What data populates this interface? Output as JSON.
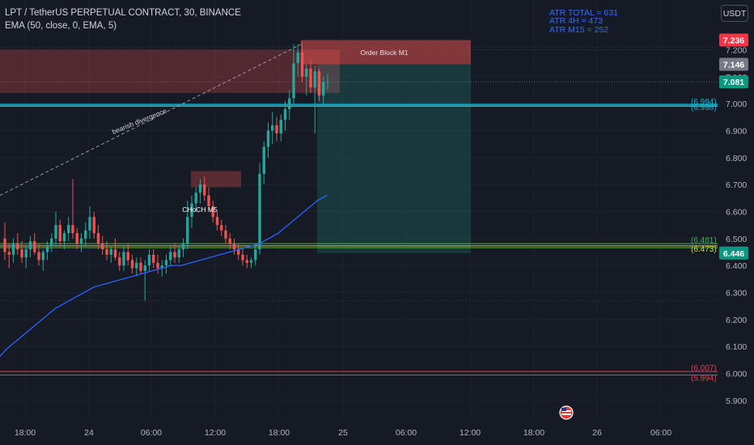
{
  "header": {
    "title": "LPT / TetherUS PERPETUAL CONTRACT, 30, BINANCE",
    "indicator": "EMA (50, close, 0, EMA, 5)"
  },
  "atr": [
    "ATR TOTAL = 631",
    "ATR 4H = 473",
    "ATR M15 = 252"
  ],
  "currency_button": "USDT",
  "colors": {
    "background": "#161a25",
    "up": "#26a69a",
    "down": "#ef5350",
    "ema": "#2962ff",
    "grid_dots": "#3a3e4a"
  },
  "chart_data": {
    "type": "candlestick",
    "title": "LPT / TetherUS PERPETUAL CONTRACT, 30, BINANCE",
    "ylim": [
      5.86,
      7.3
    ],
    "y_ticks": [
      "7.200",
      "7.100",
      "7.000",
      "6.900",
      "6.800",
      "6.700",
      "6.600",
      "6.500",
      "6.400",
      "6.300",
      "6.200",
      "6.100",
      "6.000",
      "5.900"
    ],
    "x_ticks": [
      "18:00",
      "24",
      "06:00",
      "12:00",
      "18:00",
      "25",
      "06:00",
      "12:00",
      "18:00",
      "26",
      "06:00"
    ],
    "price_badges": [
      {
        "label": "7.236",
        "value": 7.236,
        "color": "#f23645"
      },
      {
        "label": "7.146",
        "value": 7.146,
        "color": "#787b86"
      },
      {
        "label": "7.081",
        "value": 7.081,
        "color": "#089981"
      },
      {
        "label": "6.446",
        "value": 6.446,
        "color": "#089981"
      }
    ],
    "level_labels": [
      {
        "label": "(6.994)",
        "value": 6.994,
        "color": "#00bcd4"
      },
      {
        "label": "(6.998)",
        "value": 6.998,
        "color": "#00bcd4"
      },
      {
        "label": "(6.481)",
        "value": 6.481,
        "color": "#4caf50"
      },
      {
        "label": "(6.473)",
        "value": 6.473,
        "color": "#cddc39"
      },
      {
        "label": "(6.007)",
        "value": 6.007,
        "color": "#f23645"
      },
      {
        "label": "(5.994)",
        "value": 5.994,
        "color": "#f23645"
      }
    ],
    "annotations": [
      "bearish divergence",
      "Order Block M1",
      "CHoCH M5"
    ],
    "candles": [
      [
        6.5,
        6.56,
        6.42,
        6.45
      ],
      [
        6.45,
        6.48,
        6.39,
        6.44
      ],
      [
        6.44,
        6.5,
        6.41,
        6.48
      ],
      [
        6.48,
        6.52,
        6.44,
        6.46
      ],
      [
        6.46,
        6.49,
        6.41,
        6.43
      ],
      [
        6.43,
        6.47,
        6.39,
        6.46
      ],
      [
        6.46,
        6.51,
        6.43,
        6.49
      ],
      [
        6.49,
        6.52,
        6.44,
        6.45
      ],
      [
        6.45,
        6.48,
        6.4,
        6.42
      ],
      [
        6.42,
        6.46,
        6.38,
        6.45
      ],
      [
        6.45,
        6.49,
        6.42,
        6.47
      ],
      [
        6.47,
        6.52,
        6.45,
        6.5
      ],
      [
        6.5,
        6.6,
        6.47,
        6.55
      ],
      [
        6.55,
        6.57,
        6.47,
        6.49
      ],
      [
        6.49,
        6.53,
        6.46,
        6.52
      ],
      [
        6.52,
        6.58,
        6.49,
        6.55
      ],
      [
        6.55,
        6.72,
        6.5,
        6.52
      ],
      [
        6.52,
        6.54,
        6.46,
        6.48
      ],
      [
        6.48,
        6.52,
        6.45,
        6.5
      ],
      [
        6.5,
        6.56,
        6.47,
        6.53
      ],
      [
        6.53,
        6.62,
        6.5,
        6.58
      ],
      [
        6.58,
        6.6,
        6.5,
        6.52
      ],
      [
        6.52,
        6.55,
        6.46,
        6.48
      ],
      [
        6.48,
        6.51,
        6.44,
        6.46
      ],
      [
        6.46,
        6.49,
        6.42,
        6.44
      ],
      [
        6.44,
        6.47,
        6.41,
        6.46
      ],
      [
        6.46,
        6.5,
        6.42,
        6.43
      ],
      [
        6.43,
        6.45,
        6.38,
        6.4
      ],
      [
        6.4,
        6.47,
        6.38,
        6.45
      ],
      [
        6.45,
        6.48,
        6.4,
        6.42
      ],
      [
        6.42,
        6.44,
        6.37,
        6.39
      ],
      [
        6.39,
        6.43,
        6.36,
        6.41
      ],
      [
        6.41,
        6.43,
        6.37,
        6.38
      ],
      [
        6.38,
        6.42,
        6.27,
        6.4
      ],
      [
        6.4,
        6.46,
        6.38,
        6.44
      ],
      [
        6.44,
        6.46,
        6.39,
        6.41
      ],
      [
        6.41,
        6.44,
        6.37,
        6.39
      ],
      [
        6.39,
        6.42,
        6.36,
        6.4
      ],
      [
        6.4,
        6.44,
        6.37,
        6.42
      ],
      [
        6.42,
        6.47,
        6.4,
        6.45
      ],
      [
        6.45,
        6.48,
        6.41,
        6.43
      ],
      [
        6.43,
        6.47,
        6.41,
        6.46
      ],
      [
        6.46,
        6.5,
        6.43,
        6.48
      ],
      [
        6.48,
        6.64,
        6.46,
        6.58
      ],
      [
        6.58,
        6.66,
        6.54,
        6.63
      ],
      [
        6.63,
        6.69,
        6.6,
        6.67
      ],
      [
        6.67,
        6.72,
        6.63,
        6.7
      ],
      [
        6.7,
        6.73,
        6.64,
        6.66
      ],
      [
        6.66,
        6.69,
        6.6,
        6.62
      ],
      [
        6.62,
        6.64,
        6.56,
        6.58
      ],
      [
        6.58,
        6.6,
        6.53,
        6.55
      ],
      [
        6.55,
        6.57,
        6.51,
        6.53
      ],
      [
        6.53,
        6.55,
        6.48,
        6.5
      ],
      [
        6.5,
        6.52,
        6.46,
        6.48
      ],
      [
        6.48,
        6.5,
        6.44,
        6.46
      ],
      [
        6.46,
        6.48,
        6.42,
        6.44
      ],
      [
        6.44,
        6.46,
        6.4,
        6.42
      ],
      [
        6.42,
        6.44,
        6.39,
        6.41
      ],
      [
        6.41,
        6.43,
        6.39,
        6.42
      ],
      [
        6.42,
        6.48,
        6.4,
        6.46
      ],
      [
        6.46,
        6.78,
        6.44,
        6.74
      ],
      [
        6.74,
        6.86,
        6.7,
        6.84
      ],
      [
        6.84,
        6.93,
        6.8,
        6.9
      ],
      [
        6.9,
        6.97,
        6.85,
        6.92
      ],
      [
        6.92,
        6.95,
        6.86,
        6.89
      ],
      [
        6.89,
        6.96,
        6.86,
        6.94
      ],
      [
        6.94,
        7.01,
        6.9,
        6.98
      ],
      [
        6.98,
        7.05,
        6.94,
        7.02
      ],
      [
        7.02,
        7.22,
        7.0,
        7.15
      ],
      [
        7.15,
        7.22,
        7.1,
        7.19
      ],
      [
        7.19,
        7.23,
        7.08,
        7.1
      ],
      [
        7.1,
        7.15,
        7.03,
        7.13
      ],
      [
        7.13,
        7.16,
        7.04,
        7.06
      ],
      [
        7.06,
        7.14,
        6.89,
        7.12
      ],
      [
        7.12,
        7.13,
        7.01,
        7.03
      ],
      [
        7.03,
        7.1,
        7.0,
        7.08
      ],
      [
        7.08,
        7.11,
        7.05,
        7.081
      ]
    ],
    "ema": [
      6.05,
      6.09,
      6.12,
      6.15,
      6.18,
      6.21,
      6.24,
      6.26,
      6.28,
      6.3,
      6.32,
      6.33,
      6.34,
      6.35,
      6.36,
      6.37,
      6.38,
      6.39,
      6.4,
      6.4,
      6.41,
      6.42,
      6.43,
      6.44,
      6.45,
      6.46,
      6.47,
      6.48,
      6.5,
      6.52,
      6.55,
      6.58,
      6.61,
      6.64,
      6.66
    ]
  }
}
